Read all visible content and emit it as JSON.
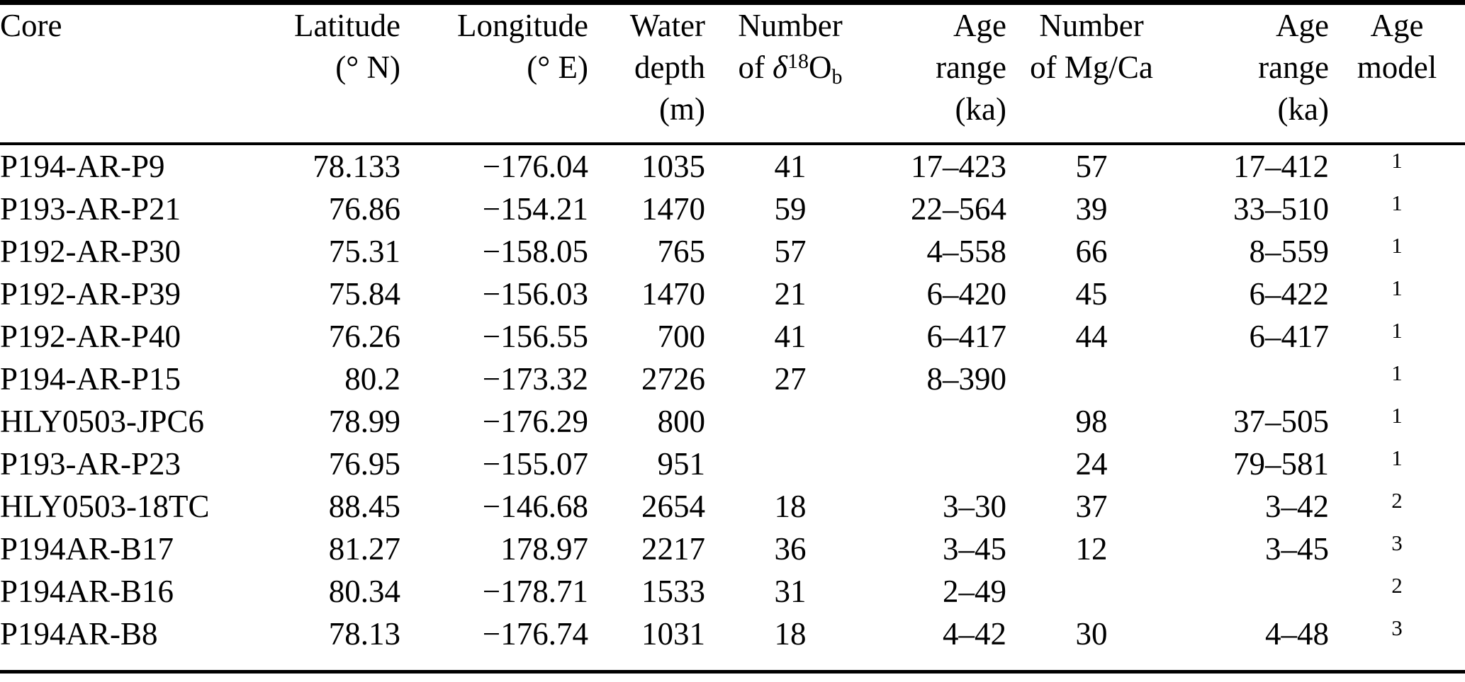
{
  "header": {
    "core": "Core",
    "latitude": [
      "Latitude",
      "(° N)"
    ],
    "longitude": [
      "Longitude",
      "(° E)"
    ],
    "water_depth": [
      "Water",
      "depth",
      "(m)"
    ],
    "n_d18o": {
      "line1": "Number",
      "of": "of",
      "delta": "δ",
      "superscript": "18",
      "element": "O",
      "subscript": "b"
    },
    "age_range_d18o": [
      "Age",
      "range",
      "(ka)"
    ],
    "n_mgca": [
      "Number",
      "of Mg/Ca"
    ],
    "age_range_mgca": [
      "Age",
      "range",
      "(ka)"
    ],
    "age_model": [
      "Age",
      "model"
    ]
  },
  "rows": [
    {
      "core": "P194-AR-P9",
      "latitude": "78.133",
      "longitude": "−176.04",
      "water_depth_m": "1035",
      "n_d18o": "41",
      "age_range_d18o_ka": "17–423",
      "n_mgca": "57",
      "age_range_mgca_ka": "17–412",
      "age_model": "1"
    },
    {
      "core": "P193-AR-P21",
      "latitude": "76.86",
      "longitude": "−154.21",
      "water_depth_m": "1470",
      "n_d18o": "59",
      "age_range_d18o_ka": "22–564",
      "n_mgca": "39",
      "age_range_mgca_ka": "33–510",
      "age_model": "1"
    },
    {
      "core": "P192-AR-P30",
      "latitude": "75.31",
      "longitude": "−158.05",
      "water_depth_m": "765",
      "n_d18o": "57",
      "age_range_d18o_ka": "4–558",
      "n_mgca": "66",
      "age_range_mgca_ka": "8–559",
      "age_model": "1"
    },
    {
      "core": "P192-AR-P39",
      "latitude": "75.84",
      "longitude": "−156.03",
      "water_depth_m": "1470",
      "n_d18o": "21",
      "age_range_d18o_ka": "6–420",
      "n_mgca": "45",
      "age_range_mgca_ka": "6–422",
      "age_model": "1"
    },
    {
      "core": "P192-AR-P40",
      "latitude": "76.26",
      "longitude": "−156.55",
      "water_depth_m": "700",
      "n_d18o": "41",
      "age_range_d18o_ka": "6–417",
      "n_mgca": "44",
      "age_range_mgca_ka": "6–417",
      "age_model": "1"
    },
    {
      "core": "P194-AR-P15",
      "latitude": "80.2",
      "longitude": "−173.32",
      "water_depth_m": "2726",
      "n_d18o": "27",
      "age_range_d18o_ka": "8–390",
      "n_mgca": "",
      "age_range_mgca_ka": "",
      "age_model": "1"
    },
    {
      "core": "HLY0503-JPC6",
      "latitude": "78.99",
      "longitude": "−176.29",
      "water_depth_m": "800",
      "n_d18o": "",
      "age_range_d18o_ka": "",
      "n_mgca": "98",
      "age_range_mgca_ka": "37–505",
      "age_model": "1"
    },
    {
      "core": "P193-AR-P23",
      "latitude": "76.95",
      "longitude": "−155.07",
      "water_depth_m": "951",
      "n_d18o": "",
      "age_range_d18o_ka": "",
      "n_mgca": "24",
      "age_range_mgca_ka": "79–581",
      "age_model": "1"
    },
    {
      "core": "HLY0503-18TC",
      "latitude": "88.45",
      "longitude": "−146.68",
      "water_depth_m": "2654",
      "n_d18o": "18",
      "age_range_d18o_ka": "3–30",
      "n_mgca": "37",
      "age_range_mgca_ka": "3–42",
      "age_model": "2"
    },
    {
      "core": "P194AR-B17",
      "latitude": "81.27",
      "longitude": "178.97",
      "water_depth_m": "2217",
      "n_d18o": "36",
      "age_range_d18o_ka": "3–45",
      "n_mgca": "12",
      "age_range_mgca_ka": "3–45",
      "age_model": "3"
    },
    {
      "core": "P194AR-B16",
      "latitude": "80.34",
      "longitude": "−178.71",
      "water_depth_m": "1533",
      "n_d18o": "31",
      "age_range_d18o_ka": "2–49",
      "n_mgca": "",
      "age_range_mgca_ka": "",
      "age_model": "2"
    },
    {
      "core": "P194AR-B8",
      "latitude": "78.13",
      "longitude": "−176.74",
      "water_depth_m": "1031",
      "n_d18o": "18",
      "age_range_d18o_ka": "4–42",
      "n_mgca": "30",
      "age_range_mgca_ka": "4–48",
      "age_model": "3"
    }
  ]
}
